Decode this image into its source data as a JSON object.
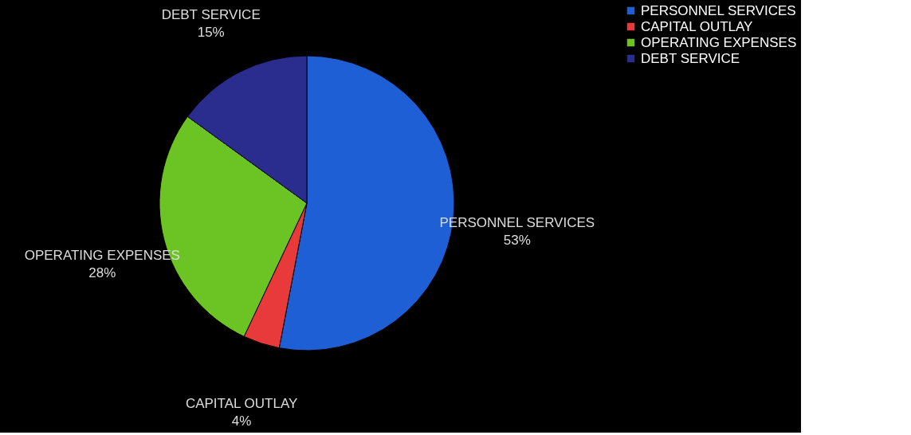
{
  "chart_data": {
    "type": "pie",
    "categories": [
      "PERSONNEL SERVICES",
      "CAPITAL OUTLAY",
      "OPERATING EXPENSES",
      "DEBT SERVICE"
    ],
    "values": [
      53,
      4,
      28,
      15
    ],
    "colors": [
      "#1f5fd6",
      "#e83a3a",
      "#6cc424",
      "#2b2d8e"
    ],
    "value_labels": [
      "53%",
      "4%",
      "28%",
      "15%"
    ],
    "legend": "right"
  }
}
